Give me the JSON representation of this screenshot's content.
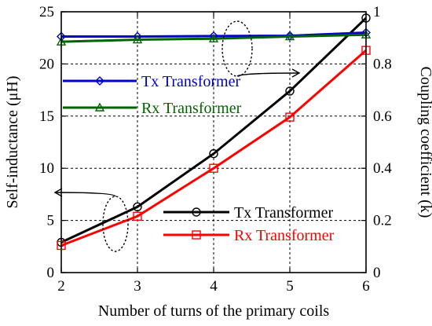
{
  "chart_data": {
    "type": "line",
    "x": [
      2,
      3,
      4,
      5,
      6
    ],
    "xlim": [
      2,
      6
    ],
    "xticks": [
      2,
      3,
      4,
      5,
      6
    ],
    "xlabel": "Number of turns of the primary coils",
    "ylabel": "Self-inductance (μH)",
    "ylim": [
      0,
      25
    ],
    "yticks": [
      0,
      5,
      10,
      15,
      20,
      25
    ],
    "y2label": "Coupling coefficient (k)",
    "y2lim": [
      0,
      1
    ],
    "y2ticks": [
      "0",
      "0.2",
      "0.4",
      "0.6",
      "0.8",
      "1"
    ],
    "y2tick_values": [
      0,
      0.2,
      0.4,
      0.6,
      0.8,
      1
    ],
    "grid": true,
    "series": [
      {
        "name": "Tx Transformer",
        "axis": "left",
        "marker": "circle",
        "color": "#000000",
        "values": [
          2.9,
          6.3,
          11.4,
          17.4,
          24.4
        ]
      },
      {
        "name": "Rx Transformer",
        "axis": "left",
        "marker": "square",
        "color": "#ff0000",
        "values": [
          2.6,
          5.4,
          10.0,
          14.9,
          21.3
        ]
      },
      {
        "name": "Tx Transformer",
        "axis": "right",
        "marker": "diamond",
        "color": "#0000cc",
        "values": [
          0.905,
          0.905,
          0.907,
          0.908,
          0.92
        ]
      },
      {
        "name": "Rx Transformer",
        "axis": "right",
        "marker": "triangle",
        "color": "#006400",
        "values": [
          0.885,
          0.893,
          0.897,
          0.905,
          0.912
        ]
      }
    ],
    "legends": [
      {
        "placement": "top-left",
        "entries": [
          {
            "label": "Tx Transformer",
            "color": "#0000cc",
            "marker": "diamond"
          },
          {
            "label": "Rx Transformer",
            "color": "#006400",
            "marker": "triangle"
          }
        ]
      },
      {
        "placement": "bottom-right",
        "entries": [
          {
            "label": "Tx Transformer",
            "color": "#000000",
            "marker": "circle"
          },
          {
            "label": "Rx Transformer",
            "color": "#ff0000",
            "marker": "square"
          }
        ]
      }
    ],
    "annotations": [
      {
        "kind": "dashed-ellipse-with-arrow",
        "points_to": "right axis"
      },
      {
        "kind": "dashed-ellipse-with-arrow",
        "points_to": "left axis"
      }
    ]
  }
}
